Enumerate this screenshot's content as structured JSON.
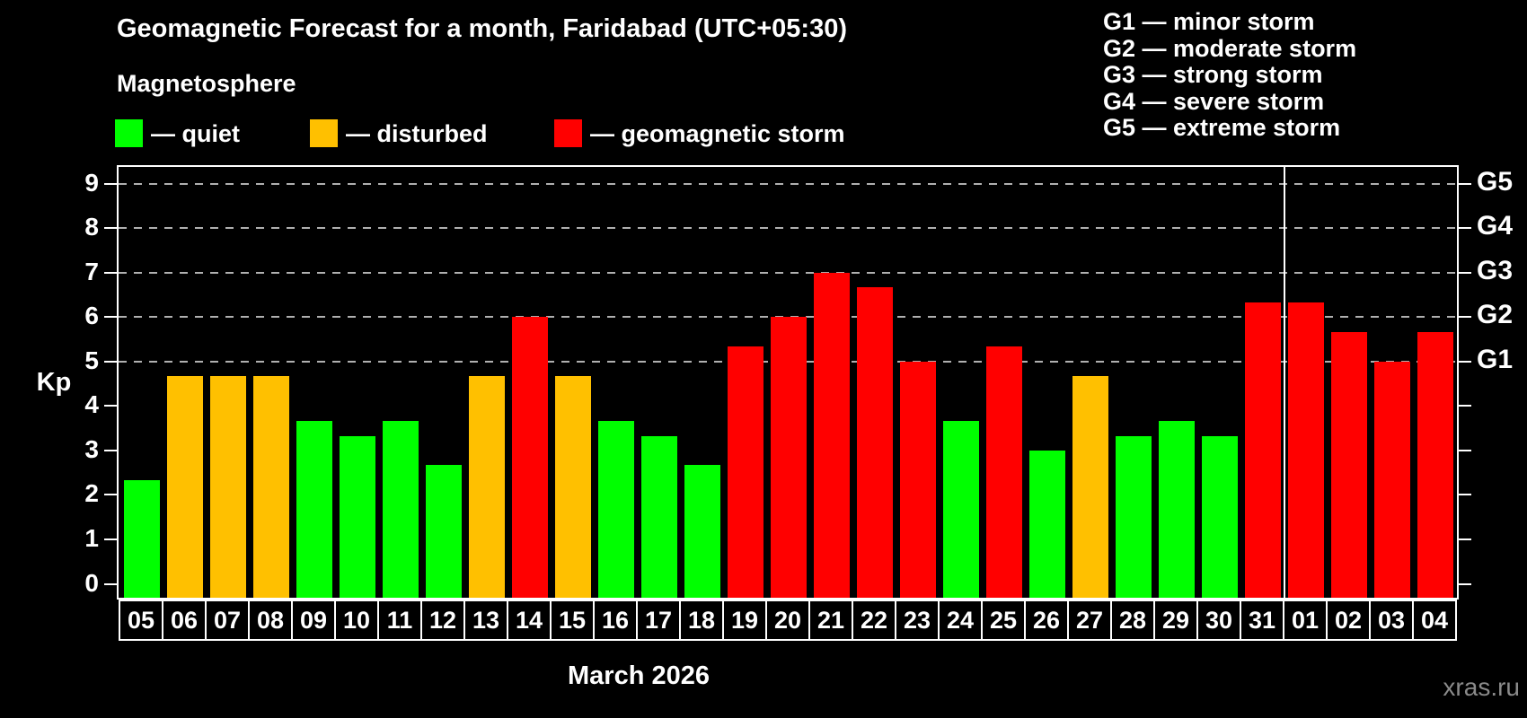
{
  "title": "Geomagnetic Forecast for a month, Faridabad (UTC+05:30)",
  "subtitle": "Magnetosphere",
  "legend": {
    "items": [
      {
        "label": "— quiet",
        "status": "quiet",
        "color": "#00ff00"
      },
      {
        "label": "— disturbed",
        "status": "disturbed",
        "color": "#ffc000"
      },
      {
        "label": "— geomagnetic storm",
        "status": "storm",
        "color": "#ff0000"
      }
    ]
  },
  "g_legend": {
    "lines": [
      "G1 — minor storm",
      "G2 — moderate storm",
      "G3 — strong storm",
      "G4 — severe storm",
      "G5 — extreme storm"
    ]
  },
  "axis": {
    "y_label": "Kp",
    "month_label": "March 2026"
  },
  "watermark": "xras.ru",
  "chart_data": {
    "type": "bar",
    "title": "Geomagnetic Forecast for a month, Faridabad (UTC+05:30)",
    "xlabel": "March 2026",
    "ylabel": "Kp",
    "ylim": [
      0,
      9.4
    ],
    "y_ticks": [
      0,
      1,
      2,
      3,
      4,
      5,
      6,
      7,
      8,
      9
    ],
    "grid_levels": [
      5,
      6,
      7,
      8,
      9
    ],
    "grid_on": true,
    "legend_position": "top",
    "right_axis_labels": [
      {
        "kp": 5,
        "label": "G1"
      },
      {
        "kp": 6,
        "label": "G2"
      },
      {
        "kp": 7,
        "label": "G3"
      },
      {
        "kp": 8,
        "label": "G4"
      },
      {
        "kp": 9,
        "label": "G5"
      }
    ],
    "categories": [
      "05",
      "06",
      "07",
      "08",
      "09",
      "10",
      "11",
      "12",
      "13",
      "14",
      "15",
      "16",
      "17",
      "18",
      "19",
      "20",
      "21",
      "22",
      "23",
      "24",
      "25",
      "26",
      "27",
      "28",
      "29",
      "30",
      "31",
      "01",
      "02",
      "03",
      "04"
    ],
    "values": [
      2.33,
      4.67,
      4.67,
      4.67,
      3.67,
      3.33,
      3.67,
      2.67,
      4.67,
      6.0,
      4.67,
      3.67,
      3.33,
      2.67,
      5.33,
      6.0,
      7.0,
      6.67,
      5.0,
      3.67,
      5.33,
      3.0,
      4.67,
      3.33,
      3.67,
      3.33,
      6.33,
      6.33,
      5.67,
      5.0,
      5.67
    ],
    "statuses": [
      "quiet",
      "disturbed",
      "disturbed",
      "disturbed",
      "quiet",
      "quiet",
      "quiet",
      "quiet",
      "disturbed",
      "storm",
      "disturbed",
      "quiet",
      "quiet",
      "quiet",
      "storm",
      "storm",
      "storm",
      "storm",
      "storm",
      "quiet",
      "storm",
      "quiet",
      "disturbed",
      "quiet",
      "quiet",
      "quiet",
      "storm",
      "storm",
      "storm",
      "storm",
      "storm"
    ],
    "colors": {
      "quiet": "#00ff00",
      "disturbed": "#ffc000",
      "storm": "#ff0000"
    },
    "month_boundary_after_index": 26
  }
}
